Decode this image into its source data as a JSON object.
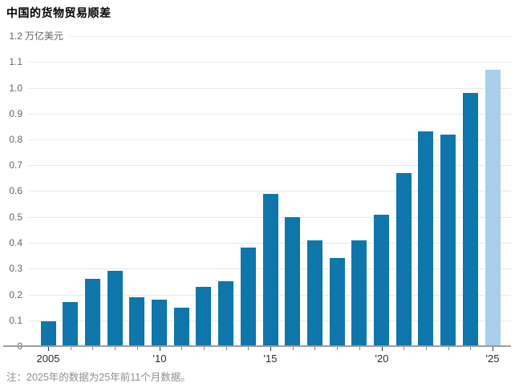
{
  "page": {
    "title": "中国的货物贸易顺差",
    "note": "注：2025年的数据为25年前11个月数据。"
  },
  "chart_data": {
    "type": "bar",
    "title": "中国的货物贸易顺差",
    "ylabel": "万亿美元",
    "unit_label": "万亿美元",
    "categories": [
      "2005",
      "2006",
      "2007",
      "2008",
      "2009",
      "2010",
      "2011",
      "2012",
      "2013",
      "2014",
      "2015",
      "2016",
      "2017",
      "2018",
      "2019",
      "2020",
      "2021",
      "2022",
      "2023",
      "2024",
      "2025"
    ],
    "values": [
      0.095,
      0.17,
      0.26,
      0.29,
      0.19,
      0.18,
      0.15,
      0.23,
      0.25,
      0.38,
      0.59,
      0.5,
      0.41,
      0.34,
      0.41,
      0.51,
      0.67,
      0.83,
      0.82,
      0.98,
      1.07
    ],
    "ylim": [
      0,
      1.2
    ],
    "ytick_step": 0.1,
    "ytick_labels": [
      "0",
      "0.1",
      "0.2",
      "0.3",
      "0.4",
      "0.5",
      "0.6",
      "0.7",
      "0.8",
      "0.9",
      "1.0",
      "1.1",
      "1.2"
    ],
    "xtick_labels": [
      {
        "index": 0,
        "label": "2005"
      },
      {
        "index": 5,
        "label": "'10"
      },
      {
        "index": 10,
        "label": "'15"
      },
      {
        "index": 15,
        "label": "'20"
      },
      {
        "index": 20,
        "label": "'25"
      }
    ],
    "grid": true,
    "legend_position": "none",
    "highlight_last_bar": true,
    "colors": {
      "bar": "#0e76ab",
      "bar_highlight": "#a9cfea",
      "grid": "#e9e9e9",
      "zero_axis": "#9c9c9c",
      "y_label_text": "#666666",
      "x_label_text": "#2b2b2b",
      "title_text": "#000000",
      "note_text": "#8f8f8f"
    },
    "note": "注：2025年的数据为25年前11个月数据。"
  }
}
